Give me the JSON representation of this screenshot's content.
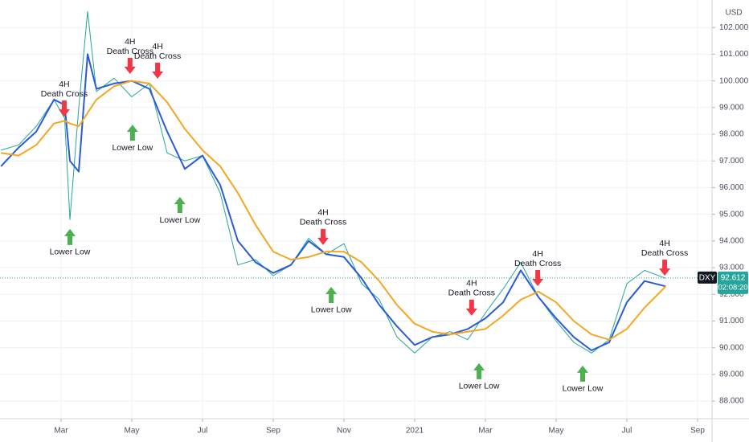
{
  "chart_data": {
    "type": "line",
    "currency": "USD",
    "x": [
      0.3,
      0.8,
      1.3,
      1.8,
      2.1,
      2.25,
      2.5,
      2.75,
      3.0,
      3.5,
      4.0,
      4.5,
      5.0,
      5.5,
      6.0,
      6.5,
      7.0,
      7.5,
      8.0,
      8.5,
      9.0,
      9.5,
      10.0,
      10.5,
      11.0,
      11.5,
      12.0,
      12.5,
      13.0,
      13.5,
      14.0,
      14.5,
      15.0,
      15.5,
      16.0,
      16.5,
      17.0,
      17.5,
      18.0,
      18.5,
      19.1
    ],
    "series": [
      {
        "color": "#26a69a",
        "values": [
          97.4,
          97.6,
          98.3,
          99.3,
          98.6,
          94.8,
          99.0,
          102.6,
          99.6,
          100.1,
          99.4,
          99.9,
          97.3,
          97.0,
          97.2,
          95.8,
          93.1,
          93.3,
          92.7,
          93.1,
          94.1,
          93.5,
          93.9,
          92.4,
          91.8,
          90.4,
          89.8,
          90.4,
          90.6,
          90.3,
          91.3,
          92.2,
          93.2,
          91.9,
          91.0,
          90.2,
          89.8,
          90.3,
          92.4,
          92.9,
          92.6
        ]
      },
      {
        "color": "#2a5bd7",
        "values": [
          96.8,
          97.5,
          98.1,
          99.3,
          99.1,
          97.0,
          96.6,
          101.0,
          99.7,
          99.9,
          100.0,
          99.7,
          98.1,
          96.7,
          97.2,
          96.1,
          94.0,
          93.2,
          92.8,
          93.1,
          94.0,
          93.5,
          93.4,
          92.6,
          91.6,
          90.8,
          90.1,
          90.4,
          90.5,
          90.7,
          91.1,
          91.7,
          92.9,
          91.9,
          91.1,
          90.4,
          89.9,
          90.2,
          91.7,
          92.5,
          92.3
        ]
      },
      {
        "color": "#f5a623",
        "values": [
          97.3,
          97.2,
          97.6,
          98.4,
          98.5,
          98.4,
          98.3,
          98.8,
          99.3,
          99.8,
          100.0,
          99.9,
          99.2,
          98.2,
          97.4,
          96.8,
          95.8,
          94.6,
          93.6,
          93.3,
          93.4,
          93.6,
          93.6,
          93.2,
          92.5,
          91.6,
          90.9,
          90.6,
          90.5,
          90.6,
          90.7,
          91.2,
          91.8,
          92.1,
          91.7,
          91.0,
          90.5,
          90.3,
          90.7,
          91.5,
          92.3
        ]
      }
    ],
    "xlim": [
      0.273,
      20.386
    ],
    "xticks": [
      {
        "value": 2,
        "label": "Mar"
      },
      {
        "value": 4,
        "label": "May"
      },
      {
        "value": 6,
        "label": "Jul"
      },
      {
        "value": 8,
        "label": "Sep"
      },
      {
        "value": 10,
        "label": "Nov"
      },
      {
        "value": 12,
        "label": "2021"
      },
      {
        "value": 14,
        "label": "Mar"
      },
      {
        "value": 16,
        "label": "May"
      },
      {
        "value": 18,
        "label": "Jul"
      },
      {
        "value": 20,
        "label": "Sep"
      }
    ],
    "ylim": [
      87.37,
      103.03
    ],
    "yticks": [
      {
        "value": 88,
        "label": "88.000"
      },
      {
        "value": 89,
        "label": "89.000"
      },
      {
        "value": 90,
        "label": "90.000"
      },
      {
        "value": 91,
        "label": "91.000"
      },
      {
        "value": 92,
        "label": "92.000"
      },
      {
        "value": 93,
        "label": "93.000"
      },
      {
        "value": 94,
        "label": "94.000"
      },
      {
        "value": 95,
        "label": "95.000"
      },
      {
        "value": 96,
        "label": "96.000"
      },
      {
        "value": 97,
        "label": "97.000"
      },
      {
        "value": 98,
        "label": "98.000"
      },
      {
        "value": 99,
        "label": "99.000"
      },
      {
        "value": 100,
        "label": "100.000"
      },
      {
        "value": 101,
        "label": "101.000"
      },
      {
        "value": 102,
        "label": "102.000"
      }
    ],
    "grid": true,
    "current_price": {
      "symbol": "DXY",
      "value": 92.612,
      "countdown": "02:08:20"
    },
    "annotations": [
      {
        "kind": "down",
        "x": 2.09,
        "y": 99.26,
        "lines": [
          "4H",
          "Death Cross"
        ]
      },
      {
        "kind": "down",
        "x": 3.95,
        "y": 100.86,
        "lines": [
          "4H",
          "Death Cross"
        ]
      },
      {
        "kind": "down",
        "x": 4.73,
        "y": 100.68,
        "lines": [
          "4H",
          "Death Cross"
        ]
      },
      {
        "kind": "down",
        "x": 9.41,
        "y": 94.45,
        "lines": [
          "4H",
          "Death Cross"
        ]
      },
      {
        "kind": "down",
        "x": 13.61,
        "y": 91.8,
        "lines": [
          "4H",
          "Death Cross"
        ]
      },
      {
        "kind": "down",
        "x": 15.48,
        "y": 92.91,
        "lines": [
          "4H",
          "Death Cross"
        ]
      },
      {
        "kind": "down",
        "x": 19.07,
        "y": 93.3,
        "lines": [
          "4H",
          "Death Cross"
        ]
      },
      {
        "kind": "up",
        "x": 2.25,
        "y": 94.45,
        "lines": [
          "Lower Low"
        ]
      },
      {
        "kind": "up",
        "x": 4.02,
        "y": 98.36,
        "lines": [
          "Lower Low"
        ]
      },
      {
        "kind": "up",
        "x": 5.36,
        "y": 95.65,
        "lines": [
          "Lower Low"
        ]
      },
      {
        "kind": "up",
        "x": 9.64,
        "y": 92.28,
        "lines": [
          "Lower Low"
        ]
      },
      {
        "kind": "up",
        "x": 13.82,
        "y": 89.42,
        "lines": [
          "Lower Low"
        ]
      },
      {
        "kind": "up",
        "x": 16.75,
        "y": 89.33,
        "lines": [
          "Lower Low"
        ]
      }
    ]
  }
}
